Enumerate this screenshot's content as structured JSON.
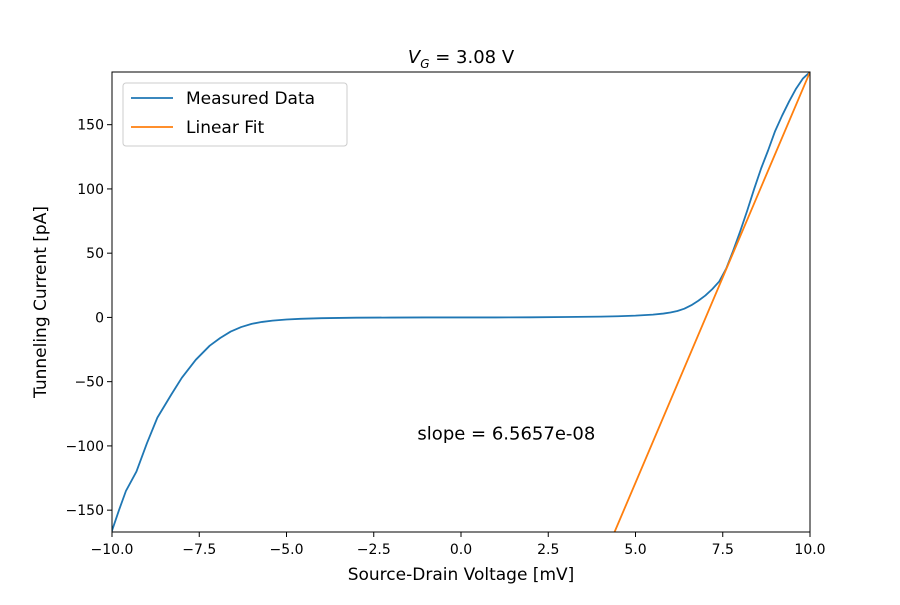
{
  "chart_data": {
    "type": "line",
    "title": {
      "prefix": "V",
      "subscript": "G",
      "suffix": " = 3.08 V"
    },
    "xlabel": "Source-Drain Voltage [mV]",
    "ylabel": "Tunneling Current [pA]",
    "xlim": [
      -10,
      10
    ],
    "ylim": [
      -167,
      191
    ],
    "xticks": [
      -10,
      -7.5,
      -5,
      -2.5,
      0,
      2.5,
      5,
      7.5,
      10
    ],
    "xtick_labels": [
      "−10.0",
      "−7.5",
      "−5.0",
      "−2.5",
      "0.0",
      "2.5",
      "5.0",
      "7.5",
      "10.0"
    ],
    "yticks": [
      -150,
      -100,
      -50,
      0,
      50,
      100,
      150
    ],
    "ytick_labels": [
      "−150",
      "−100",
      "−50",
      "0",
      "50",
      "100",
      "150"
    ],
    "grid": false,
    "legend_position": "top-left",
    "series": [
      {
        "name": "Measured Data",
        "color": "#1f77b4",
        "x": [
          -10,
          -9.8,
          -9.6,
          -9.3,
          -9.0,
          -8.7,
          -8.3,
          -8.0,
          -7.6,
          -7.2,
          -6.9,
          -6.6,
          -6.3,
          -6.0,
          -5.7,
          -5.4,
          -5.0,
          -4.6,
          -4.0,
          -3.0,
          -2.0,
          -1.0,
          0,
          1.0,
          2.0,
          3.0,
          4.0,
          4.5,
          5.0,
          5.5,
          5.8,
          6.0,
          6.2,
          6.4,
          6.6,
          6.8,
          7.0,
          7.2,
          7.4,
          7.6,
          7.8,
          8.0,
          8.2,
          8.4,
          8.6,
          8.8,
          9.0,
          9.2,
          9.4,
          9.6,
          9.8,
          10.0
        ],
        "y": [
          -166,
          -150,
          -135,
          -120,
          -98,
          -78,
          -60,
          -47,
          -33,
          -22,
          -16,
          -11,
          -7.5,
          -5,
          -3.5,
          -2.5,
          -1.6,
          -1.1,
          -0.6,
          -0.2,
          -0.1,
          0,
          0,
          0,
          0.1,
          0.3,
          0.6,
          0.9,
          1.4,
          2.2,
          3.0,
          3.8,
          5.0,
          6.8,
          9.5,
          13,
          17,
          22,
          28,
          38,
          52,
          67,
          83,
          100,
          116,
          130,
          145,
          157,
          168,
          178,
          186,
          191
        ]
      },
      {
        "name": "Linear Fit",
        "color": "#ff7f0e",
        "x": [
          4.4,
          10.0
        ],
        "y": [
          -167,
          191
        ]
      }
    ],
    "annotations": [
      {
        "text": "slope = 6.5657e-08",
        "x": 1.3,
        "y": -95
      }
    ]
  }
}
